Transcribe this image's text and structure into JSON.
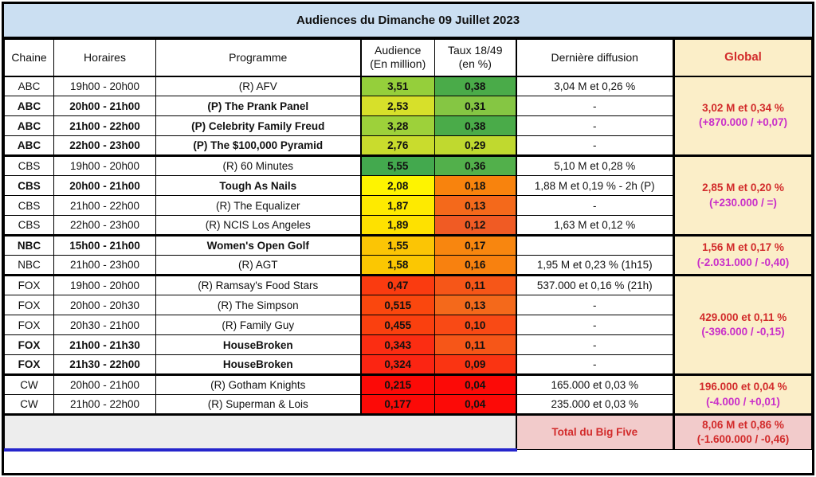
{
  "title": "Audiences du Dimanche 09 Juillet 2023",
  "columns": {
    "chaine": "Chaine",
    "horaires": "Horaires",
    "programme": "Programme",
    "audience_line1": "Audience",
    "audience_line2": "(En million)",
    "taux_line1": "Taux 18/49",
    "taux_line2": "(en %)",
    "derniere": "Dernière diffusion",
    "global": "Global"
  },
  "colors": {
    "title-bg": "#CBDFF2",
    "global-bg": "#FBEEC8",
    "total-bg": "#F2CBCB",
    "footer-gray": "#EDEDED",
    "blue-line": "#2525CC",
    "red-text": "#D22B2B",
    "magenta-text": "#C92FC9"
  },
  "rows": [
    {
      "chaine": "ABC",
      "horaires": "19h00 - 20h00",
      "programme": "(R) AFV",
      "audience": "3,51",
      "audience_color": "#95CF3B",
      "taux": "0,38",
      "taux_color": "#4AAB49",
      "derniere": "3,04 M et 0,26 %",
      "bold": false,
      "group_start": false,
      "global": 0
    },
    {
      "chaine": "ABC",
      "horaires": "20h00 - 21h00",
      "programme": "(P) The Prank Panel",
      "audience": "2,53",
      "audience_color": "#D7E02A",
      "taux": "0,31",
      "taux_color": "#85C643",
      "derniere": "-",
      "bold": true,
      "group_start": false
    },
    {
      "chaine": "ABC",
      "horaires": "21h00 - 22h00",
      "programme": "(P) Celebrity Family Freud",
      "audience": "3,28",
      "audience_color": "#9DD13A",
      "taux": "0,38",
      "taux_color": "#4AAB49",
      "derniere": "-",
      "bold": true,
      "group_start": false
    },
    {
      "chaine": "ABC",
      "horaires": "22h00 - 23h00",
      "programme": "(P) The $100,000 Pyramid",
      "audience": "2,76",
      "audience_color": "#C9DC2D",
      "taux": "0,29",
      "taux_color": "#C0D92F",
      "derniere": "-",
      "bold": true,
      "group_start": false
    },
    {
      "chaine": "CBS",
      "horaires": "19h00 - 20h00",
      "programme": "(R) 60 Minutes",
      "audience": "5,55",
      "audience_color": "#43A94E",
      "taux": "0,36",
      "taux_color": "#52B04B",
      "derniere": "5,10 M et 0,28 %",
      "bold": false,
      "group_start": true,
      "global": 1
    },
    {
      "chaine": "CBS",
      "horaires": "20h00 - 21h00",
      "programme": "Tough As Nails",
      "audience": "2,08",
      "audience_color": "#FEF400",
      "taux": "0,18",
      "taux_color": "#F8830D",
      "derniere": "1,88 M et 0,19 % - 2h (P)",
      "bold": true,
      "group_start": false
    },
    {
      "chaine": "CBS",
      "horaires": "21h00 - 22h00",
      "programme": "(R) The Equalizer",
      "audience": "1,87",
      "audience_color": "#FEEA00",
      "taux": "0,13",
      "taux_color": "#F4691B",
      "derniere": "-",
      "bold": false,
      "group_start": false
    },
    {
      "chaine": "CBS",
      "horaires": "22h00 - 23h00",
      "programme": "(R) NCIS Los Angeles",
      "audience": "1,89",
      "audience_color": "#FEE100",
      "taux": "0,12",
      "taux_color": "#F05B24",
      "derniere": "1,63 M et 0,12 %",
      "bold": false,
      "group_start": false
    },
    {
      "chaine": "NBC",
      "horaires": "15h00 - 21h00",
      "programme": "Women's Open Golf",
      "audience": "1,55",
      "audience_color": "#FBC505",
      "taux": "0,17",
      "taux_color": "#F8860F",
      "derniere": "",
      "bold": true,
      "group_start": true,
      "global": 2
    },
    {
      "chaine": "NBC",
      "horaires": "21h00 - 23h00",
      "programme": "(R) AGT",
      "audience": "1,58",
      "audience_color": "#FBC702",
      "taux": "0,16",
      "taux_color": "#F8810F",
      "derniere": "1,95 M et 0,23 % (1h15)",
      "bold": false,
      "group_start": false
    },
    {
      "chaine": "FOX",
      "horaires": "19h00 - 20h00",
      "programme": "(R) Ramsay's Food Stars",
      "audience": "0,47",
      "audience_color": "#FA3B10",
      "taux": "0,11",
      "taux_color": "#F65618",
      "derniere": "537.000 et 0,16 % (21h)",
      "bold": false,
      "group_start": true,
      "global": 3
    },
    {
      "chaine": "FOX",
      "horaires": "20h00 - 20h30",
      "programme": "(R) The Simpson",
      "audience": "0,515",
      "audience_color": "#FA470E",
      "taux": "0,13",
      "taux_color": "#F4691B",
      "derniere": "-",
      "bold": false,
      "group_start": false
    },
    {
      "chaine": "FOX",
      "horaires": "20h30 - 21h00",
      "programme": "(R) Family Guy",
      "audience": "0,455",
      "audience_color": "#FA400F",
      "taux": "0,10",
      "taux_color": "#F94A15",
      "derniere": "-",
      "bold": false,
      "group_start": false
    },
    {
      "chaine": "FOX",
      "horaires": "21h00 - 21h30",
      "programme": "HouseBroken",
      "audience": "0,343",
      "audience_color": "#FB2D12",
      "taux": "0,11",
      "taux_color": "#F65618",
      "derniere": "-",
      "bold": true,
      "group_start": false
    },
    {
      "chaine": "FOX",
      "horaires": "21h30 - 22h00",
      "programme": "HouseBroken",
      "audience": "0,324",
      "audience_color": "#FB2512",
      "taux": "0,09",
      "taux_color": "#FA3412",
      "derniere": "-",
      "bold": true,
      "group_start": false
    },
    {
      "chaine": "CW",
      "horaires": "20h00 - 21h00",
      "programme": "(R) Gotham Knights",
      "audience": "0,215",
      "audience_color": "#FC0A07",
      "taux": "0,04",
      "taux_color": "#FC0A07",
      "derniere": "165.000 et 0,03 %",
      "bold": false,
      "group_start": true,
      "global": 4
    },
    {
      "chaine": "CW",
      "horaires": "21h00 - 22h00",
      "programme": "(R) Superman & Lois",
      "audience": "0,177",
      "audience_color": "#FC0A07",
      "taux": "0,04",
      "taux_color": "#FC0A07",
      "derniere": "235.000 et 0,03 %",
      "bold": false,
      "group_start": false
    }
  ],
  "globals": [
    {
      "network": "ABC",
      "rowspan": 4,
      "line1": "3,02 M et 0,34 %",
      "line2": "(+870.000 / +0,07)"
    },
    {
      "network": "CBS",
      "rowspan": 4,
      "line1": "2,85 M et 0,20 %",
      "line2": "(+230.000 / =)"
    },
    {
      "network": "NBC",
      "rowspan": 2,
      "line1": "1,56 M et 0,17 %",
      "line2": "(-2.031.000 / -0,40)"
    },
    {
      "network": "FOX",
      "rowspan": 5,
      "line1": "429.000 et 0,11 %",
      "line2": "(-396.000 / -0,15)"
    },
    {
      "network": "CW",
      "rowspan": 2,
      "line1": "196.000 et 0,04 %",
      "line2": "(-4.000 / +0,01)"
    }
  ],
  "footer": {
    "total_label": "Total du Big Five",
    "total_line1": "8,06 M et 0,86 %",
    "total_line2": "(-1.600.000 / -0,46)"
  }
}
